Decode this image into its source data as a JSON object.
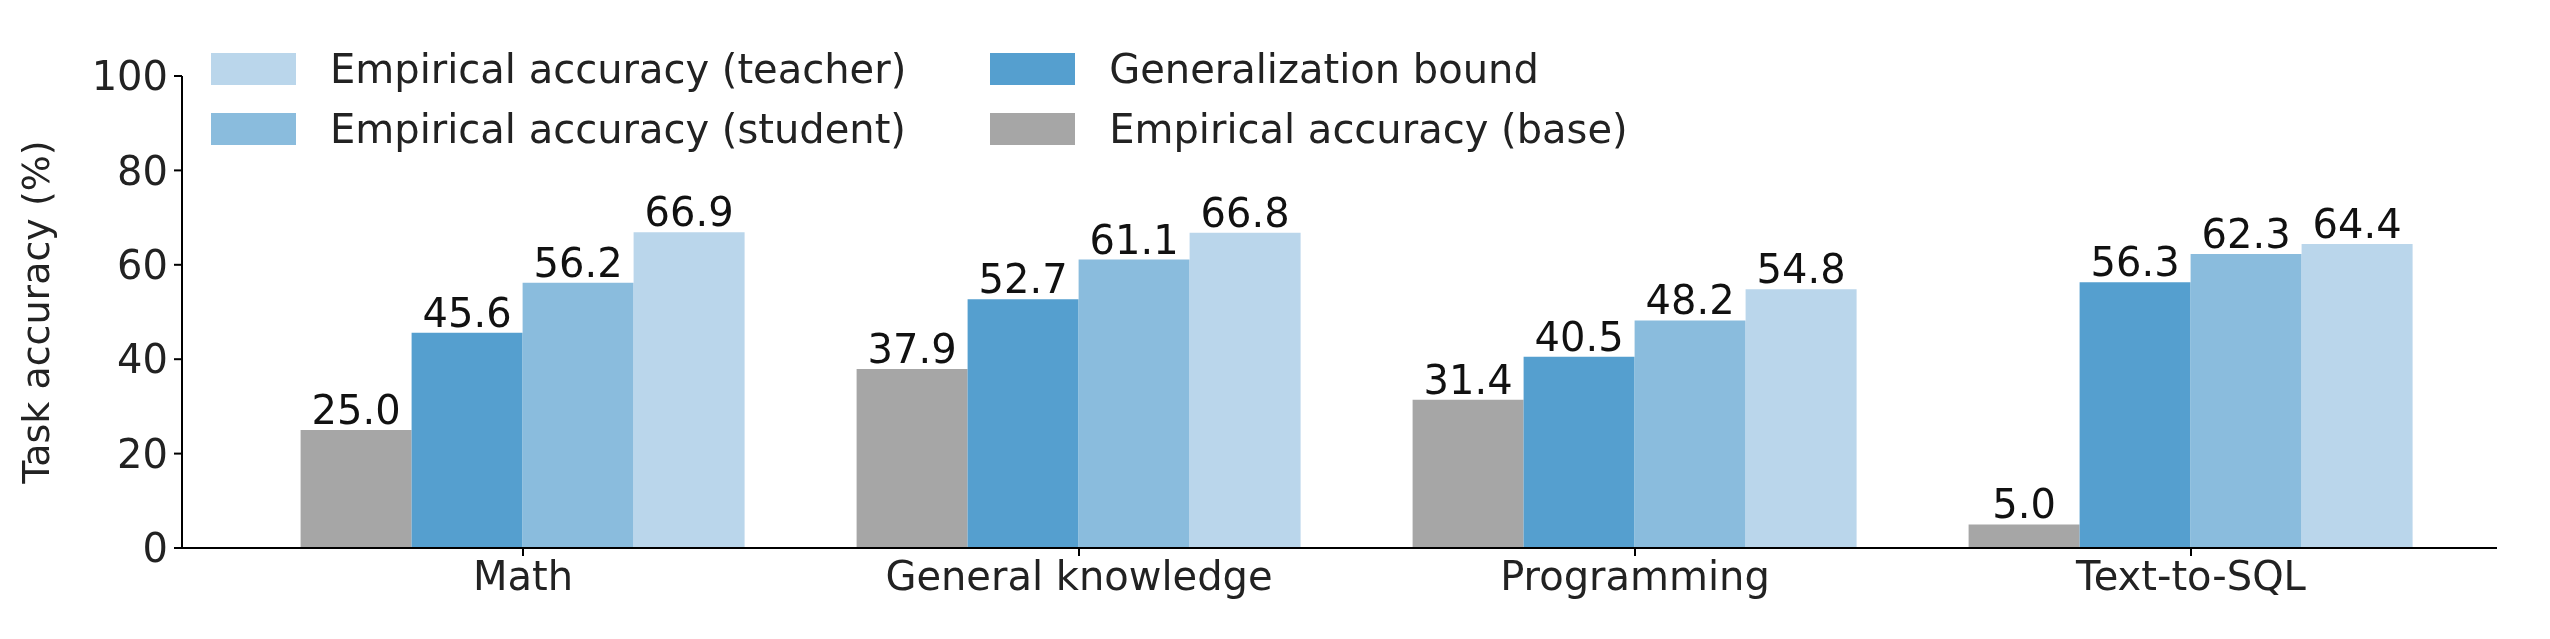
{
  "chart_data": {
    "type": "bar",
    "ylabel": "Task accuracy (%)",
    "categories": [
      "Math",
      "General knowledge",
      "Programming",
      "Text-to-SQL"
    ],
    "series": [
      {
        "name": "Empirical accuracy (base)",
        "color": "#a6a6a6",
        "values": [
          25.0,
          37.9,
          31.4,
          5.0
        ],
        "value_labels": [
          "25.0",
          "37.9",
          "31.4",
          "5.0"
        ]
      },
      {
        "name": "Generalization bound",
        "color": "#559fcf",
        "values": [
          45.6,
          52.7,
          40.5,
          56.3
        ],
        "value_labels": [
          "45.6",
          "52.7",
          "40.5",
          "56.3"
        ]
      },
      {
        "name": "Empirical accuracy (student)",
        "color": "#8abcdd",
        "values": [
          56.2,
          61.1,
          48.2,
          62.3
        ],
        "value_labels": [
          "56.2",
          "61.1",
          "48.2",
          "62.3"
        ]
      },
      {
        "name": "Empirical accuracy (teacher)",
        "color": "#bad6eb",
        "values": [
          66.9,
          66.8,
          54.8,
          64.4
        ],
        "value_labels": [
          "66.9",
          "66.8",
          "54.8",
          "64.4"
        ]
      }
    ],
    "ylim": [
      0,
      100
    ],
    "yticks": [
      0,
      20,
      40,
      60,
      80,
      100
    ],
    "grid": false,
    "legend": "top left"
  }
}
